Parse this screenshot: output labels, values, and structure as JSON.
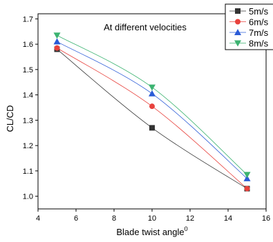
{
  "chart_data": {
    "type": "line",
    "annotation": "At different velocities",
    "xlabel": "Blade twist angle",
    "xlabel_sup": "0",
    "ylabel": "CL/CD",
    "xlim": [
      4,
      16
    ],
    "ylim": [
      0.95,
      1.72
    ],
    "xticks": [
      4,
      6,
      8,
      10,
      12,
      14,
      16
    ],
    "yticks": [
      1.0,
      1.1,
      1.2,
      1.3,
      1.4,
      1.5,
      1.6,
      1.7
    ],
    "grid": false,
    "legend_position": "top-right",
    "x": [
      5,
      10,
      15
    ],
    "series": [
      {
        "name": "5m/s",
        "values": [
          1.58,
          1.27,
          1.03
        ],
        "color": "#333333",
        "marker": "square"
      },
      {
        "name": "6m/s",
        "values": [
          1.585,
          1.355,
          1.03
        ],
        "color": "#e8423d",
        "marker": "circle"
      },
      {
        "name": "7m/s",
        "values": [
          1.61,
          1.405,
          1.07
        ],
        "color": "#2a5bd7",
        "marker": "triangle-up"
      },
      {
        "name": "8m/s",
        "values": [
          1.635,
          1.43,
          1.085
        ],
        "color": "#3cb371",
        "marker": "triangle-down"
      }
    ]
  }
}
